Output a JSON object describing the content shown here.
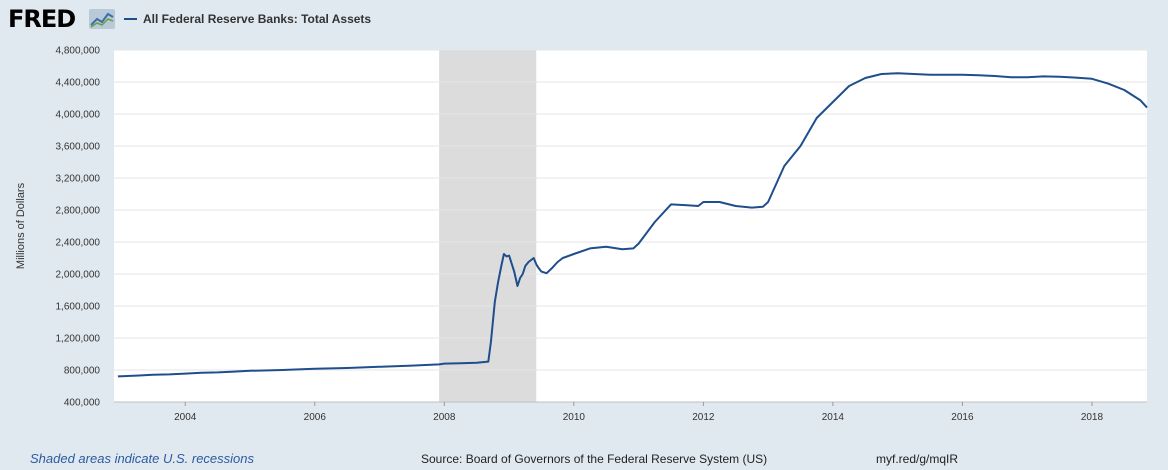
{
  "header": {
    "logo_text": "FRED",
    "logo_icon": "line-chart-icon"
  },
  "footer": {
    "recession_note": "Shaded areas indicate U.S. recessions",
    "source": "Source: Board of Governors of the Federal Reserve System (US)",
    "short_url": "myf.red/g/mqIR"
  },
  "colors": {
    "series": "#1f4e8c",
    "recession": "#dcdcdc",
    "grid": "#e6e6e6",
    "background": "#e1e9f0",
    "plot": "#ffffff",
    "note": "#2c5aa0"
  },
  "chart_data": {
    "type": "line",
    "title": "",
    "xlabel": "",
    "ylabel": "Millions of Dollars",
    "xlim": [
      2002.9,
      2018.85
    ],
    "ylim": [
      400000,
      4800000
    ],
    "grid": "horizontal",
    "legend_placement": "top-left",
    "y_ticks": [
      400000,
      800000,
      1200000,
      1600000,
      2000000,
      2400000,
      2800000,
      3200000,
      3600000,
      4000000,
      4400000,
      4800000
    ],
    "y_tick_labels": [
      "400,000",
      "800,000",
      "1,200,000",
      "1,600,000",
      "2,000,000",
      "2,400,000",
      "2,800,000",
      "3,200,000",
      "3,600,000",
      "4,000,000",
      "4,400,000",
      "4,800,000"
    ],
    "x_ticks": [
      2004,
      2006,
      2008,
      2010,
      2012,
      2014,
      2016,
      2018
    ],
    "x_tick_labels": [
      "2004",
      "2006",
      "2008",
      "2010",
      "2012",
      "2014",
      "2016",
      "2018"
    ],
    "recessions": [
      [
        2007.92,
        2009.42
      ]
    ],
    "series": [
      {
        "name": "All Federal Reserve Banks: Total Assets",
        "x": [
          2002.96,
          2003.25,
          2003.5,
          2003.75,
          2004.0,
          2004.25,
          2004.5,
          2004.75,
          2005.0,
          2005.5,
          2006.0,
          2006.5,
          2007.0,
          2007.5,
          2007.92,
          2008.0,
          2008.25,
          2008.5,
          2008.68,
          2008.72,
          2008.78,
          2008.83,
          2008.88,
          2008.92,
          2008.96,
          2009.0,
          2009.08,
          2009.13,
          2009.17,
          2009.21,
          2009.25,
          2009.3,
          2009.38,
          2009.42,
          2009.46,
          2009.5,
          2009.58,
          2009.67,
          2009.75,
          2009.83,
          2010.0,
          2010.25,
          2010.5,
          2010.75,
          2010.92,
          2011.0,
          2011.25,
          2011.5,
          2011.75,
          2011.92,
          2012.0,
          2012.25,
          2012.5,
          2012.75,
          2012.92,
          2013.0,
          2013.25,
          2013.5,
          2013.75,
          2014.0,
          2014.25,
          2014.5,
          2014.75,
          2015.0,
          2015.25,
          2015.5,
          2015.75,
          2016.0,
          2016.25,
          2016.5,
          2016.75,
          2017.0,
          2017.25,
          2017.5,
          2017.75,
          2018.0,
          2018.25,
          2018.5,
          2018.75,
          2018.85
        ],
        "y": [
          720000,
          730000,
          740000,
          745000,
          755000,
          765000,
          770000,
          780000,
          790000,
          800000,
          815000,
          825000,
          840000,
          855000,
          870000,
          880000,
          885000,
          890000,
          905000,
          1150000,
          1650000,
          1900000,
          2100000,
          2250000,
          2220000,
          2230000,
          2030000,
          1850000,
          1950000,
          2000000,
          2100000,
          2150000,
          2200000,
          2120000,
          2070000,
          2030000,
          2010000,
          2080000,
          2150000,
          2200000,
          2250000,
          2320000,
          2340000,
          2310000,
          2320000,
          2380000,
          2650000,
          2870000,
          2860000,
          2850000,
          2900000,
          2900000,
          2850000,
          2830000,
          2840000,
          2900000,
          3350000,
          3600000,
          3950000,
          4150000,
          4350000,
          4450000,
          4500000,
          4510000,
          4500000,
          4490000,
          4490000,
          4490000,
          4485000,
          4475000,
          4460000,
          4460000,
          4470000,
          4465000,
          4455000,
          4440000,
          4380000,
          4300000,
          4170000,
          4080000
        ]
      }
    ]
  }
}
